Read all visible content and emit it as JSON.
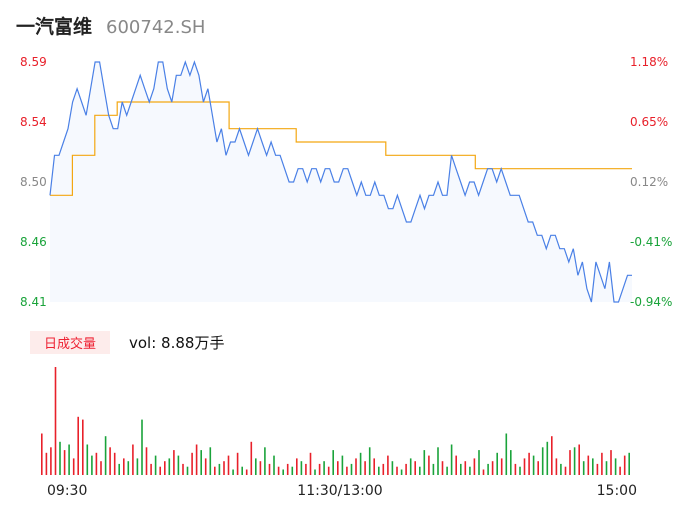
{
  "header": {
    "name": "一汽富维",
    "code": "600742.SH"
  },
  "price_axis": {
    "labels": [
      "8.59",
      "8.54",
      "8.50",
      "8.46",
      "8.41"
    ]
  },
  "pct_axis": {
    "labels": [
      "1.18%",
      "0.65%",
      "0.12%",
      "-0.41%",
      "-0.94%"
    ]
  },
  "volume": {
    "tag": "日成交量",
    "text": "vol: 8.88万手"
  },
  "time_axis": {
    "labels": [
      "09:30",
      "11:30/13:00",
      "15:00"
    ]
  },
  "colors": {
    "up": "#e8202a",
    "down": "#1aa33a",
    "neutral": "#888888",
    "price_line": "#4a80e6",
    "avg_line": "#f3a712"
  },
  "chart_data": [
    {
      "type": "line",
      "series": [
        {
          "values": [
            8.49,
            8.52,
            8.52,
            8.53,
            8.54,
            8.56,
            8.57,
            8.56,
            8.55,
            8.57,
            8.59,
            8.59,
            8.57,
            8.55,
            8.54,
            8.54,
            8.56,
            8.55,
            8.56,
            8.57,
            8.58,
            8.57,
            8.56,
            8.57,
            8.59,
            8.59,
            8.57,
            8.56,
            8.58,
            8.58,
            8.59,
            8.58,
            8.59,
            8.58,
            8.56,
            8.57,
            8.55,
            8.53,
            8.54,
            8.52,
            8.53,
            8.53,
            8.54,
            8.53,
            8.52,
            8.53,
            8.54,
            8.53,
            8.52,
            8.53,
            8.52,
            8.52,
            8.51,
            8.5,
            8.5,
            8.51,
            8.51,
            8.5,
            8.51,
            8.51,
            8.5,
            8.51,
            8.51,
            8.5,
            8.5,
            8.51,
            8.51,
            8.5,
            8.49,
            8.5,
            8.49,
            8.49,
            8.5,
            8.49,
            8.49,
            8.48,
            8.48,
            8.49,
            8.48,
            8.47,
            8.47,
            8.48,
            8.49,
            8.48,
            8.49,
            8.49,
            8.5,
            8.49,
            8.49,
            8.52,
            8.51,
            8.5,
            8.49,
            8.5,
            8.5,
            8.49,
            8.5,
            8.51,
            8.51,
            8.5,
            8.51,
            8.5,
            8.49,
            8.49,
            8.49,
            8.48,
            8.47,
            8.47,
            8.46,
            8.46,
            8.45,
            8.46,
            8.46,
            8.45,
            8.45,
            8.44,
            8.45,
            8.43,
            8.44,
            8.42,
            8.41,
            8.44,
            8.43,
            8.42,
            8.44,
            8.41,
            8.41,
            8.42,
            8.43,
            8.43
          ]
        },
        {
          "values": [
            8.49,
            8.52,
            8.55,
            8.56,
            8.56,
            8.56,
            8.56,
            8.56,
            8.54,
            8.54,
            8.54,
            8.53,
            8.53,
            8.53,
            8.53,
            8.52,
            8.52,
            8.52,
            8.52,
            8.51,
            8.51,
            8.51,
            8.51,
            8.51,
            8.51,
            8.51,
            8.51
          ]
        }
      ],
      "ylim": [
        8.41,
        8.59
      ],
      "yticks": [
        "8.59",
        "8.54",
        "8.50",
        "8.46",
        "8.41"
      ],
      "y2ticks": [
        "1.18%",
        "0.65%",
        "0.12%",
        "-0.41%",
        "-0.94%"
      ],
      "xticks": [
        "09:30",
        "11:30/13:00",
        "15:00"
      ],
      "grid": false
    },
    {
      "type": "bar",
      "values": [
        30,
        16,
        20,
        78,
        24,
        18,
        22,
        12,
        42,
        40,
        22,
        14,
        16,
        10,
        28,
        20,
        16,
        8,
        12,
        10,
        22,
        12,
        40,
        20,
        8,
        14,
        6,
        10,
        12,
        18,
        14,
        8,
        6,
        16,
        22,
        18,
        12,
        20,
        6,
        8,
        10,
        14,
        4,
        16,
        6,
        4,
        24,
        12,
        10,
        20,
        8,
        14,
        6,
        4,
        8,
        6,
        12,
        10,
        8,
        16,
        4,
        8,
        10,
        6,
        18,
        10,
        14,
        6,
        8,
        12,
        16,
        10,
        20,
        12,
        6,
        8,
        14,
        10,
        6,
        4,
        8,
        12,
        10,
        6,
        18,
        14,
        8,
        20,
        10,
        6,
        22,
        14,
        8,
        10,
        6,
        12,
        18,
        4,
        8,
        10,
        16,
        12,
        30,
        18,
        8,
        6,
        12,
        16,
        14,
        10,
        20,
        24,
        28,
        12,
        8,
        6,
        18,
        20,
        22,
        10,
        14,
        12,
        8,
        16,
        10,
        18,
        12,
        6,
        14,
        16
      ],
      "colors": [
        "up",
        "up",
        "up",
        "up",
        "down",
        "up",
        "down",
        "up",
        "up",
        "up",
        "down",
        "down",
        "up",
        "up",
        "down",
        "up",
        "up",
        "down",
        "up",
        "down",
        "up",
        "down",
        "down",
        "up",
        "up",
        "down",
        "up",
        "up",
        "down",
        "up",
        "down",
        "up",
        "down",
        "up",
        "up",
        "down",
        "up",
        "down",
        "up",
        "down",
        "up",
        "up",
        "down",
        "up",
        "down",
        "up",
        "up",
        "down",
        "up",
        "down",
        "up",
        "down",
        "up",
        "down",
        "up",
        "down",
        "up",
        "down",
        "up",
        "up",
        "down",
        "up",
        "down",
        "up",
        "down",
        "up",
        "down",
        "up",
        "down",
        "up",
        "down",
        "up",
        "down",
        "up",
        "down",
        "up",
        "up",
        "down",
        "up",
        "down",
        "up",
        "down",
        "up",
        "down",
        "down",
        "up",
        "down",
        "down",
        "up",
        "down",
        "down",
        "up",
        "down",
        "up",
        "down",
        "up",
        "down",
        "up",
        "down",
        "up",
        "down",
        "up",
        "down",
        "down",
        "up",
        "down",
        "up",
        "up",
        "down",
        "up",
        "down",
        "down",
        "up",
        "up",
        "down",
        "up",
        "up",
        "down",
        "up",
        "down",
        "up",
        "down",
        "up",
        "up",
        "down",
        "up",
        "down",
        "up",
        "up",
        "down"
      ]
    }
  ]
}
